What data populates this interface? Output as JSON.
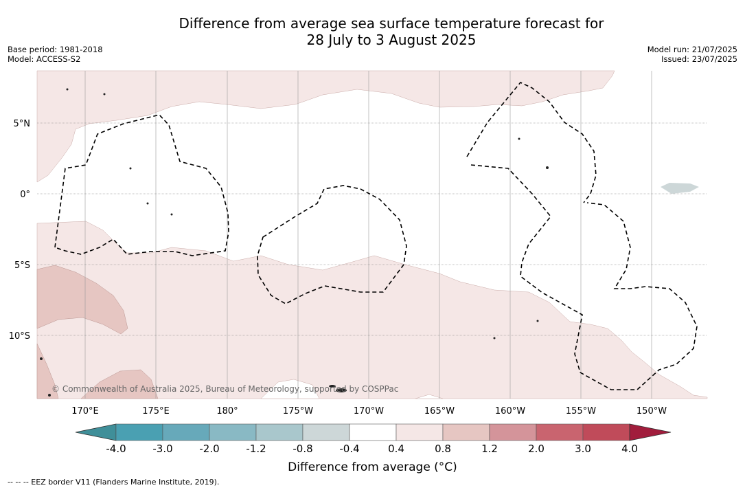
{
  "title": {
    "line1": "Difference from average sea surface temperature forecast for",
    "line2": "28 July to 3 August 2025"
  },
  "meta_left": {
    "base_period": "Base period: 1981-2018",
    "model": "Model: ACCESS-S2"
  },
  "meta_right": {
    "model_run": "Model run: 21/07/2025",
    "issued": "Issued: 23/07/2025"
  },
  "map": {
    "lon_labels": [
      "170°E",
      "175°E",
      "180°",
      "175°W",
      "170°W",
      "165°W",
      "160°W",
      "155°W",
      "150°W"
    ],
    "lat_labels": [
      "5°N",
      "0°",
      "5°S",
      "10°S"
    ],
    "copyright": "© Commonwealth of Australia 2025, Bureau of Meteorology, supported by COSPPac"
  },
  "colorbar": {
    "ticks": [
      "-4.0",
      "-3.0",
      "-2.0",
      "-1.2",
      "-0.8",
      "-0.4",
      "0.4",
      "0.8",
      "1.2",
      "2.0",
      "3.0",
      "4.0"
    ],
    "colors": [
      "#3f8f99",
      "#4aa0b2",
      "#67a9ba",
      "#89b9c4",
      "#a9c7cc",
      "#cdd7d8",
      "#ffffff",
      "#f5e7e6",
      "#e6c6c2",
      "#d4949a",
      "#c9646f",
      "#c04b5a",
      "#a11d3c"
    ],
    "label": "Difference from average (°C)"
  },
  "footnote": "--  --  -- EEZ border V11 (Flanders Marine Institute, 2019)."
}
